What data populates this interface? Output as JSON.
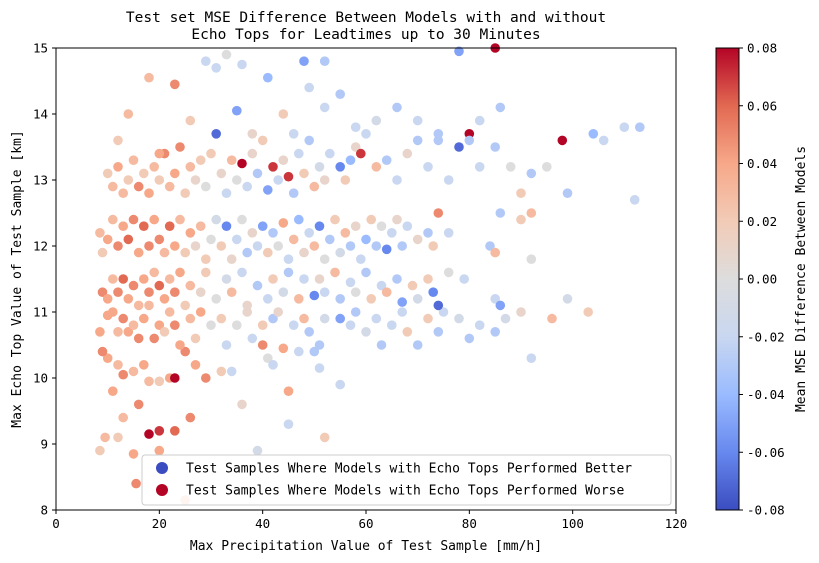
{
  "chart_data": {
    "type": "scatter",
    "title_lines": [
      "Test set MSE Difference Between Models with and without",
      "Echo Tops for Leadtimes up to 30 Minutes"
    ],
    "xlabel": "Max Precipitation Value of Test Sample [mm/h]",
    "ylabel": "Max Echo Top Value of Test Sample [km]",
    "xlim": [
      0,
      120
    ],
    "ylim": [
      8,
      15
    ],
    "xticks": [
      "0",
      "20",
      "40",
      "60",
      "80",
      "100",
      "120"
    ],
    "yticks": [
      "8",
      "9",
      "10",
      "11",
      "12",
      "13",
      "14",
      "15"
    ],
    "grid": false,
    "legend": {
      "placement": "lower-right",
      "entries": [
        {
          "label": "Test Samples Where Models with Echo Tops Performed Better",
          "color": "#3b4cc0"
        },
        {
          "label": "Test Samples Where Models with Echo Tops Performed Worse",
          "color": "#b40426"
        }
      ]
    },
    "colorbar": {
      "label": "Mean MSE Difference Between Models",
      "range": [
        -0.08,
        0.08
      ],
      "ticks": [
        "0.08",
        "0.06",
        "0.04",
        "0.02",
        "0.00",
        "-0.02",
        "-0.04",
        "-0.06",
        "-0.08"
      ],
      "colormap": [
        "#3b4cc0",
        "#6788ee",
        "#9abbff",
        "#c9d7f0",
        "#dddddd",
        "#f2cbb7",
        "#f7a889",
        "#e26952",
        "#b40426"
      ]
    },
    "points": [
      [
        8.5,
        8.9,
        0.02
      ],
      [
        9.5,
        9.1,
        0.03
      ],
      [
        12,
        9.1,
        0.02
      ],
      [
        15,
        8.85,
        0.04
      ],
      [
        11,
        9.8,
        0.04
      ],
      [
        13,
        9.4,
        0.03
      ],
      [
        16,
        9.6,
        0.05
      ],
      [
        18,
        9.15,
        0.08
      ],
      [
        20,
        9.2,
        0.07
      ],
      [
        23,
        9.2,
        0.06
      ],
      [
        26,
        9.4,
        0.05
      ],
      [
        25,
        8.15,
        0.03
      ],
      [
        15.5,
        8.4,
        0.05
      ],
      [
        20,
        8.9,
        0.04
      ],
      [
        10,
        10.3,
        0.04
      ],
      [
        12,
        10.2,
        0.03
      ],
      [
        13,
        10.05,
        0.05
      ],
      [
        15,
        10.1,
        0.03
      ],
      [
        17,
        10.2,
        0.04
      ],
      [
        18,
        9.95,
        0.03
      ],
      [
        20,
        9.95,
        0.02
      ],
      [
        22,
        10,
        0.04
      ],
      [
        23,
        10,
        0.08
      ],
      [
        25,
        10.4,
        0.05
      ],
      [
        27,
        10.2,
        0.04
      ],
      [
        29,
        10,
        0.05
      ],
      [
        32,
        10.1,
        0.02
      ],
      [
        34,
        10.1,
        -0.02
      ],
      [
        36,
        9.6,
        0.01
      ],
      [
        39,
        8.9,
        -0.01
      ],
      [
        40,
        10.5,
        0.05
      ],
      [
        41,
        10.3,
        0.0
      ],
      [
        42,
        10.2,
        -0.02
      ],
      [
        44,
        10.45,
        0.04
      ],
      [
        45,
        9.8,
        0.04
      ],
      [
        45,
        9.3,
        -0.02
      ],
      [
        47,
        10.4,
        -0.02
      ],
      [
        50,
        10.4,
        -0.03
      ],
      [
        51,
        10.15,
        -0.02
      ],
      [
        52,
        9.1,
        0.02
      ],
      [
        55,
        9.9,
        -0.02
      ],
      [
        8.5,
        10.7,
        0.04
      ],
      [
        9,
        10.4,
        0.05
      ],
      [
        10,
        10.95,
        0.04
      ],
      [
        11,
        11.0,
        0.04
      ],
      [
        12,
        10.7,
        0.03
      ],
      [
        13,
        10.9,
        0.05
      ],
      [
        14,
        10.7,
        0.04
      ],
      [
        15,
        10.8,
        0.03
      ],
      [
        16,
        10.6,
        0.05
      ],
      [
        17,
        10.9,
        0.04
      ],
      [
        18,
        11.1,
        0.03
      ],
      [
        19,
        10.6,
        0.05
      ],
      [
        20,
        10.8,
        0.04
      ],
      [
        21,
        10.7,
        0.02
      ],
      [
        22,
        11.0,
        0.03
      ],
      [
        23,
        10.8,
        0.05
      ],
      [
        24,
        10.5,
        0.04
      ],
      [
        26,
        10.9,
        0.03
      ],
      [
        27,
        10.6,
        0.02
      ],
      [
        28,
        11.0,
        0.04
      ],
      [
        30,
        10.8,
        0.0
      ],
      [
        32,
        10.9,
        0.02
      ],
      [
        33,
        10.5,
        -0.02
      ],
      [
        35,
        10.8,
        0.0
      ],
      [
        37,
        11.0,
        0.01
      ],
      [
        38,
        10.6,
        -0.02
      ],
      [
        40,
        10.8,
        0.02
      ],
      [
        42,
        10.9,
        -0.03
      ],
      [
        43,
        11.0,
        0.01
      ],
      [
        46,
        10.8,
        -0.02
      ],
      [
        48,
        10.9,
        0.03
      ],
      [
        49,
        10.7,
        -0.03
      ],
      [
        51,
        10.5,
        -0.03
      ],
      [
        52,
        10.9,
        -0.01
      ],
      [
        55,
        10.9,
        -0.05
      ],
      [
        57,
        10.8,
        -0.02
      ],
      [
        58,
        11.0,
        -0.03
      ],
      [
        60,
        10.7,
        -0.01
      ],
      [
        62,
        10.9,
        -0.02
      ],
      [
        63,
        10.5,
        -0.03
      ],
      [
        65,
        10.8,
        -0.02
      ],
      [
        67,
        11.0,
        -0.02
      ],
      [
        68,
        10.7,
        0.02
      ],
      [
        70,
        10.5,
        -0.03
      ],
      [
        72,
        10.9,
        0.02
      ],
      [
        74,
        10.7,
        -0.03
      ],
      [
        75,
        11.0,
        -0.02
      ],
      [
        78,
        10.9,
        -0.01
      ],
      [
        80,
        10.6,
        -0.03
      ],
      [
        82,
        10.8,
        -0.02
      ],
      [
        85,
        10.7,
        -0.03
      ],
      [
        87,
        10.9,
        -0.01
      ],
      [
        90,
        11.0,
        0.01
      ],
      [
        92,
        10.3,
        -0.02
      ],
      [
        96,
        10.9,
        0.03
      ],
      [
        99,
        11.2,
        -0.01
      ],
      [
        103,
        11.0,
        0.02
      ],
      [
        9,
        11.3,
        0.05
      ],
      [
        10,
        11.2,
        0.04
      ],
      [
        11,
        11.5,
        0.03
      ],
      [
        12,
        11.3,
        0.05
      ],
      [
        13,
        11.5,
        0.06
      ],
      [
        14,
        11.2,
        0.04
      ],
      [
        15,
        11.4,
        0.05
      ],
      [
        16,
        11.1,
        0.03
      ],
      [
        17,
        11.5,
        0.04
      ],
      [
        18,
        11.3,
        0.05
      ],
      [
        19,
        11.6,
        0.03
      ],
      [
        20,
        11.4,
        0.06
      ],
      [
        21,
        11.2,
        0.04
      ],
      [
        22,
        11.5,
        0.03
      ],
      [
        23,
        11.3,
        0.05
      ],
      [
        24,
        11.6,
        0.04
      ],
      [
        25,
        11.1,
        0.02
      ],
      [
        26,
        11.4,
        0.03
      ],
      [
        28,
        11.3,
        0.01
      ],
      [
        29,
        11.6,
        0.02
      ],
      [
        31,
        11.2,
        0.0
      ],
      [
        33,
        11.5,
        -0.01
      ],
      [
        34,
        11.3,
        0.03
      ],
      [
        36,
        11.6,
        -0.02
      ],
      [
        37,
        11.1,
        0.01
      ],
      [
        39,
        11.4,
        -0.03
      ],
      [
        41,
        11.2,
        -0.02
      ],
      [
        42,
        11.5,
        0.02
      ],
      [
        44,
        11.3,
        -0.01
      ],
      [
        45,
        11.6,
        -0.03
      ],
      [
        47,
        11.2,
        0.03
      ],
      [
        48,
        11.5,
        -0.02
      ],
      [
        50,
        11.25,
        -0.06
      ],
      [
        51,
        11.5,
        0.01
      ],
      [
        52,
        11.3,
        -0.02
      ],
      [
        54,
        11.6,
        0.03
      ],
      [
        55,
        11.2,
        -0.03
      ],
      [
        57,
        11.45,
        -0.02
      ],
      [
        58,
        11.3,
        0.0
      ],
      [
        60,
        11.6,
        -0.03
      ],
      [
        61,
        11.2,
        0.02
      ],
      [
        63,
        11.4,
        -0.02
      ],
      [
        64,
        11.3,
        0.03
      ],
      [
        66,
        11.5,
        -0.03
      ],
      [
        67,
        11.15,
        -0.05
      ],
      [
        69,
        11.4,
        0.02
      ],
      [
        70,
        11.2,
        -0.01
      ],
      [
        72,
        11.5,
        0.02
      ],
      [
        73,
        11.3,
        -0.06
      ],
      [
        74,
        11.1,
        -0.07
      ],
      [
        76,
        11.6,
        0.0
      ],
      [
        79,
        11.5,
        -0.02
      ],
      [
        85,
        11.2,
        -0.02
      ],
      [
        86,
        11.1,
        -0.05
      ],
      [
        92,
        11.8,
        0.0
      ],
      [
        8.5,
        12.2,
        0.03
      ],
      [
        9,
        11.9,
        0.02
      ],
      [
        10,
        12.1,
        0.04
      ],
      [
        11,
        12.4,
        0.03
      ],
      [
        12,
        12.0,
        0.05
      ],
      [
        13,
        12.3,
        0.04
      ],
      [
        14,
        12.1,
        0.06
      ],
      [
        15,
        12.4,
        0.05
      ],
      [
        16,
        11.9,
        0.04
      ],
      [
        17,
        12.3,
        0.06
      ],
      [
        18,
        12.0,
        0.05
      ],
      [
        19,
        12.4,
        0.04
      ],
      [
        20,
        12.1,
        0.05
      ],
      [
        21,
        11.9,
        0.03
      ],
      [
        22,
        12.3,
        0.06
      ],
      [
        23,
        12.0,
        0.04
      ],
      [
        24,
        12.4,
        0.03
      ],
      [
        25,
        11.9,
        0.02
      ],
      [
        26,
        12.2,
        0.04
      ],
      [
        27,
        12.0,
        0.01
      ],
      [
        28,
        12.3,
        0.03
      ],
      [
        29,
        11.8,
        0.02
      ],
      [
        30,
        12.1,
        0.0
      ],
      [
        31,
        12.4,
        -0.01
      ],
      [
        32,
        12.0,
        0.02
      ],
      [
        33,
        12.3,
        -0.06
      ],
      [
        34,
        11.8,
        0.01
      ],
      [
        35,
        12.1,
        -0.02
      ],
      [
        36,
        12.4,
        0.0
      ],
      [
        37,
        11.9,
        -0.03
      ],
      [
        38,
        12.2,
        0.01
      ],
      [
        39,
        12.0,
        -0.02
      ],
      [
        40,
        12.3,
        -0.05
      ],
      [
        41,
        11.9,
        0.02
      ],
      [
        42,
        12.2,
        -0.03
      ],
      [
        43,
        12.0,
        0.0
      ],
      [
        44,
        12.35,
        0.04
      ],
      [
        45,
        11.8,
        -0.02
      ],
      [
        46,
        12.1,
        0.03
      ],
      [
        47,
        12.4,
        -0.04
      ],
      [
        48,
        11.9,
        0.01
      ],
      [
        49,
        12.2,
        -0.02
      ],
      [
        50,
        12.0,
        0.03
      ],
      [
        51,
        12.3,
        -0.06
      ],
      [
        52,
        11.8,
        0.0
      ],
      [
        53,
        12.1,
        -0.03
      ],
      [
        54,
        12.4,
        0.02
      ],
      [
        55,
        11.9,
        -0.01
      ],
      [
        56,
        12.2,
        0.03
      ],
      [
        57,
        12.0,
        -0.03
      ],
      [
        58,
        12.3,
        0.01
      ],
      [
        59,
        11.8,
        -0.02
      ],
      [
        60,
        12.1,
        -0.04
      ],
      [
        61,
        12.4,
        0.02
      ],
      [
        62,
        12.0,
        -0.03
      ],
      [
        63,
        12.3,
        0.0
      ],
      [
        64,
        11.95,
        -0.06
      ],
      [
        65,
        12.2,
        -0.02
      ],
      [
        66,
        12.4,
        0.01
      ],
      [
        67,
        12.0,
        -0.03
      ],
      [
        68,
        12.3,
        -0.02
      ],
      [
        70,
        12.1,
        0.01
      ],
      [
        72,
        12.2,
        -0.03
      ],
      [
        73,
        12.0,
        0.02
      ],
      [
        74,
        12.5,
        0.05
      ],
      [
        76,
        12.2,
        -0.02
      ],
      [
        84,
        12.0,
        -0.03
      ],
      [
        85,
        11.9,
        0.03
      ],
      [
        86,
        12.5,
        -0.03
      ],
      [
        90,
        12.4,
        0.02
      ],
      [
        92,
        12.5,
        0.03
      ],
      [
        10,
        13.1,
        0.02
      ],
      [
        11,
        12.9,
        0.03
      ],
      [
        12,
        13.2,
        0.04
      ],
      [
        13,
        12.8,
        0.03
      ],
      [
        14,
        13.0,
        0.02
      ],
      [
        15,
        13.3,
        0.03
      ],
      [
        16,
        12.9,
        0.05
      ],
      [
        17,
        13.1,
        0.02
      ],
      [
        18,
        12.8,
        0.04
      ],
      [
        19,
        13.2,
        0.03
      ],
      [
        20,
        13.0,
        0.02
      ],
      [
        21,
        13.4,
        0.05
      ],
      [
        22,
        12.9,
        0.03
      ],
      [
        23,
        13.1,
        0.04
      ],
      [
        24,
        13.5,
        0.05
      ],
      [
        25,
        12.8,
        0.02
      ],
      [
        26,
        13.2,
        0.03
      ],
      [
        27,
        13.0,
        0.01
      ],
      [
        28,
        13.3,
        0.02
      ],
      [
        29,
        12.9,
        0.0
      ],
      [
        30,
        13.4,
        0.02
      ],
      [
        31,
        13.7,
        -0.07
      ],
      [
        32,
        13.1,
        0.01
      ],
      [
        33,
        12.8,
        -0.02
      ],
      [
        34,
        13.3,
        0.03
      ],
      [
        35,
        13.0,
        0.0
      ],
      [
        36,
        13.25,
        0.08
      ],
      [
        37,
        12.9,
        -0.02
      ],
      [
        38,
        13.4,
        0.01
      ],
      [
        39,
        13.1,
        -0.03
      ],
      [
        40,
        13.6,
        0.02
      ],
      [
        41,
        12.85,
        -0.05
      ],
      [
        42,
        13.2,
        0.07
      ],
      [
        43,
        13.0,
        -0.02
      ],
      [
        44,
        13.3,
        0.01
      ],
      [
        45,
        13.05,
        0.07
      ],
      [
        46,
        12.8,
        -0.03
      ],
      [
        47,
        13.4,
        -0.02
      ],
      [
        48,
        13.1,
        0.02
      ],
      [
        49,
        13.6,
        -0.03
      ],
      [
        50,
        12.9,
        0.03
      ],
      [
        51,
        13.2,
        -0.01
      ],
      [
        52,
        13.0,
        0.01
      ],
      [
        53,
        13.4,
        -0.02
      ],
      [
        55,
        13.2,
        -0.06
      ],
      [
        56,
        13.0,
        0.02
      ],
      [
        57,
        13.3,
        -0.04
      ],
      [
        58,
        13.5,
        0.01
      ],
      [
        59,
        13.4,
        0.07
      ],
      [
        60,
        13.7,
        -0.02
      ],
      [
        62,
        13.2,
        0.03
      ],
      [
        64,
        13.3,
        -0.03
      ],
      [
        66,
        13.0,
        -0.02
      ],
      [
        68,
        13.4,
        0.01
      ],
      [
        70,
        13.6,
        -0.03
      ],
      [
        72,
        13.2,
        -0.02
      ],
      [
        74,
        13.7,
        -0.03
      ],
      [
        76,
        13.0,
        -0.02
      ],
      [
        78,
        13.5,
        -0.07
      ],
      [
        80,
        13.7,
        0.08
      ],
      [
        80,
        13.6,
        -0.03
      ],
      [
        82,
        13.2,
        -0.02
      ],
      [
        85,
        13.5,
        -0.03
      ],
      [
        88,
        13.2,
        0.0
      ],
      [
        90,
        12.8,
        0.02
      ],
      [
        92,
        13.1,
        -0.03
      ],
      [
        95,
        13.2,
        0.0
      ],
      [
        98,
        13.6,
        0.08
      ],
      [
        99,
        12.8,
        -0.03
      ],
      [
        104,
        13.7,
        -0.04
      ],
      [
        106,
        13.6,
        -0.02
      ],
      [
        110,
        13.8,
        -0.02
      ],
      [
        113,
        13.8,
        -0.03
      ],
      [
        112,
        12.7,
        -0.02
      ],
      [
        12,
        13.6,
        0.02
      ],
      [
        14,
        14.0,
        0.03
      ],
      [
        18,
        14.55,
        0.03
      ],
      [
        20,
        13.4,
        0.04
      ],
      [
        23,
        14.45,
        0.05
      ],
      [
        26,
        13.9,
        0.02
      ],
      [
        29,
        14.8,
        -0.02
      ],
      [
        31,
        14.7,
        -0.02
      ],
      [
        33,
        14.9,
        0.0
      ],
      [
        35,
        14.05,
        -0.05
      ],
      [
        36,
        14.75,
        -0.02
      ],
      [
        38,
        13.7,
        0.01
      ],
      [
        41,
        14.55,
        -0.04
      ],
      [
        44,
        14.0,
        0.02
      ],
      [
        46,
        13.7,
        -0.02
      ],
      [
        48,
        14.8,
        -0.05
      ],
      [
        49,
        14.4,
        -0.02
      ],
      [
        52,
        14.8,
        -0.03
      ],
      [
        52,
        14.1,
        -0.02
      ],
      [
        55,
        14.3,
        -0.03
      ],
      [
        58,
        13.8,
        -0.02
      ],
      [
        62,
        13.9,
        -0.01
      ],
      [
        66,
        14.1,
        -0.03
      ],
      [
        70,
        13.9,
        -0.02
      ],
      [
        74,
        13.6,
        -0.03
      ],
      [
        78,
        14.95,
        -0.05
      ],
      [
        82,
        13.9,
        -0.02
      ],
      [
        86,
        14.1,
        -0.03
      ],
      [
        85,
        15.0,
        0.08
      ]
    ]
  }
}
